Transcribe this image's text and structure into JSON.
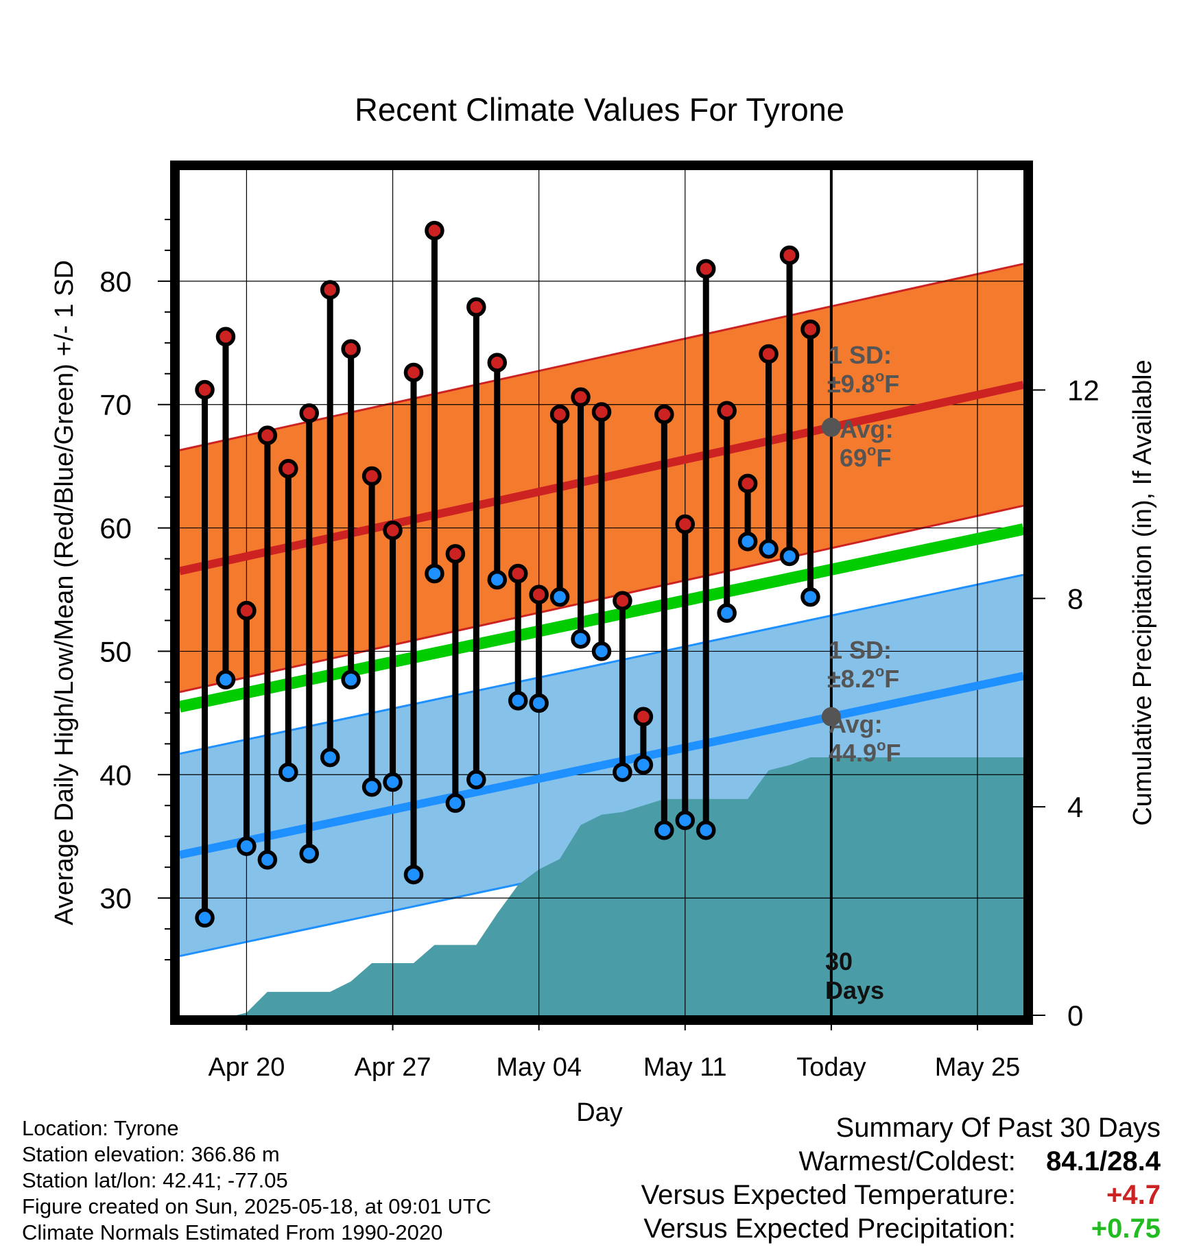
{
  "chart_data": {
    "type": "line",
    "title": "Recent Climate Values For Tyrone",
    "xlabel": "Day",
    "ylabel_left": "Average Daily High/Low/Mean (Red/Blue/Green) +/- 1 SD",
    "ylabel_right": "Cumulative Precipitation (in), If Available",
    "x_tick_labels": [
      "Apr 20",
      "Apr 27",
      "May 04",
      "May 11",
      "Today",
      "May 25"
    ],
    "x_tick_days": [
      2,
      9,
      16,
      23,
      30,
      37
    ],
    "xlim": [
      -1.2,
      39.2
    ],
    "ylim": [
      20.5,
      89
    ],
    "y_ticks": [
      30,
      40,
      50,
      60,
      70,
      80
    ],
    "y2_ticks": [
      0,
      4,
      8,
      12
    ],
    "y2lim": [
      0,
      16.22
    ],
    "grid": true,
    "today_day": 30,
    "daily": {
      "days": [
        0,
        1,
        2,
        3,
        4,
        5,
        6,
        7,
        8,
        9,
        10,
        11,
        12,
        13,
        14,
        15,
        16,
        17,
        18,
        19,
        20,
        21,
        22,
        23,
        24,
        25,
        26,
        27,
        28,
        29
      ],
      "high": [
        71.2,
        75.5,
        53.3,
        67.5,
        64.8,
        69.3,
        79.3,
        74.5,
        64.2,
        59.8,
        72.6,
        84.1,
        57.9,
        77.9,
        73.4,
        56.3,
        54.6,
        69.2,
        70.6,
        69.4,
        54.1,
        44.7,
        69.2,
        60.3,
        81.0,
        69.5,
        63.6,
        74.1,
        82.1,
        76.1
      ],
      "low": [
        28.4,
        47.7,
        34.2,
        33.1,
        40.2,
        33.6,
        41.4,
        47.7,
        39.0,
        39.4,
        31.9,
        56.3,
        37.7,
        39.6,
        55.8,
        46.0,
        45.8,
        54.4,
        51.0,
        50.0,
        40.2,
        40.8,
        35.5,
        36.3,
        35.5,
        53.1,
        58.9,
        58.3,
        57.7,
        54.4
      ]
    },
    "normal_high": {
      "start": 56.5,
      "end": 71.6,
      "sd": 9.8
    },
    "normal_low": {
      "start": 33.5,
      "end": 48.0,
      "sd": 8.2
    },
    "normal_mean": {
      "start": 45.5,
      "end": 59.9
    },
    "precip_cumulative": {
      "days": [
        -0.7,
        1.5,
        2,
        3,
        6,
        7,
        8,
        10,
        11,
        13,
        14,
        15,
        16,
        17,
        18,
        19,
        20,
        22,
        24,
        26,
        27,
        28,
        29,
        39.2
      ],
      "values": [
        0,
        0,
        0.05,
        0.45,
        0.45,
        0.65,
        1.0,
        1.0,
        1.35,
        1.35,
        1.95,
        2.5,
        2.8,
        3.0,
        3.65,
        3.85,
        3.9,
        4.15,
        4.15,
        4.15,
        4.7,
        4.8,
        4.95,
        4.95
      ]
    },
    "annotations": {
      "high_sd_label": "1 SD:",
      "high_sd_value": "±9.8",
      "high_avg_label": "Avg:",
      "high_avg_value": "69",
      "low_sd_label": "1 SD:",
      "low_sd_value": "±8.2",
      "low_avg_label": "Avg:",
      "low_avg_value": "44.9",
      "degree_symbol": "o",
      "unit_letter": "F",
      "days_label_1": "30",
      "days_label_2": "Days"
    },
    "colors": {
      "high_marker": "#cc2222",
      "low_marker": "#1e90ff",
      "high_band": "#f47a2e",
      "high_line": "#cc2222",
      "low_band": "#85c1e9",
      "low_line": "#1e90ff",
      "mean_line": "#00cc00",
      "precip": "#4a9ca6",
      "annotation": "#555555"
    }
  },
  "footer": {
    "location": "Location: Tyrone",
    "elevation": "Station elevation: 366.86 m",
    "latlon": "Station lat/lon: 42.41; -77.05",
    "created": "Figure created on Sun, 2025-05-18, at 09:01 UTC",
    "normals": "Climate Normals Estimated From 1990-2020"
  },
  "summary": {
    "title": "Summary Of Past 30 Days",
    "warm_cold_label": "Warmest/Coldest:",
    "warm_cold_value": "84.1/28.4",
    "temp_label": "Versus Expected Temperature:",
    "temp_value": "+4.7",
    "temp_color": "#cc2222",
    "precip_label": "Versus Expected Precipitation:",
    "precip_value": "+0.75",
    "precip_color": "#22bb22"
  }
}
